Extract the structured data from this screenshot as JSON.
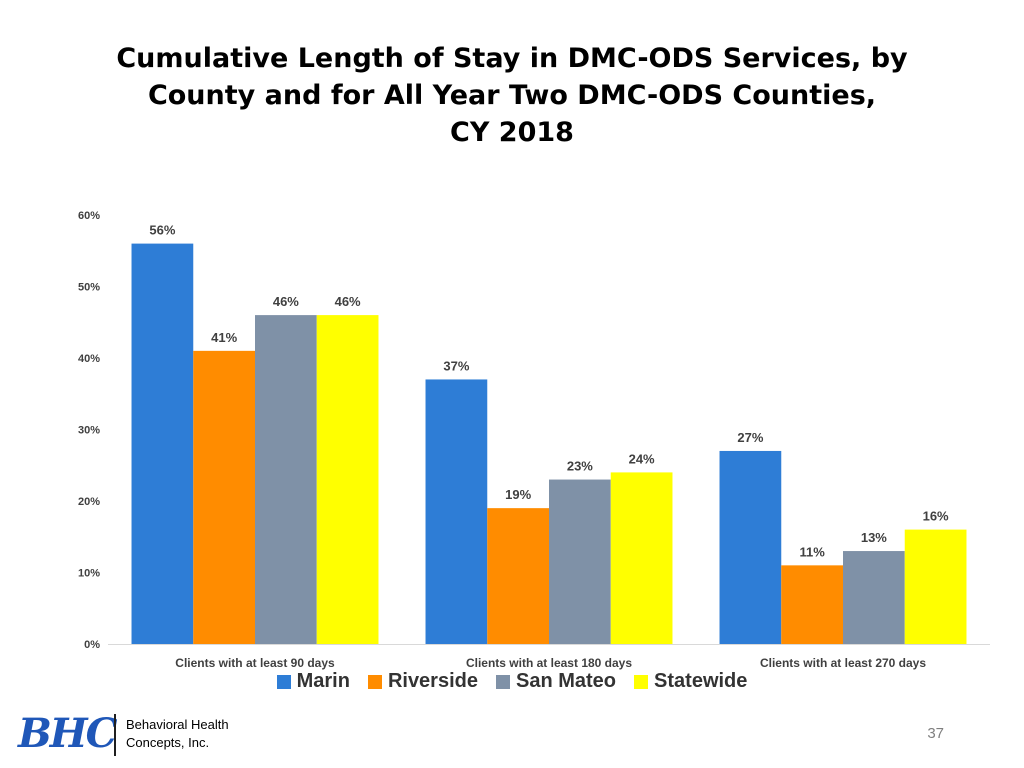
{
  "slide": {
    "title_lines": [
      "Cumulative Length of Stay in DMC-ODS Services, by",
      "County and for All Year Two DMC-ODS Counties,",
      "CY 2018"
    ],
    "page_number": "37",
    "logo": {
      "mark": "BHC",
      "company_lines": [
        "Behavioral Health",
        "Concepts, Inc."
      ]
    }
  },
  "chart_data": {
    "type": "bar",
    "title": "Cumulative Length of Stay in DMC-ODS Services, by County and for All Year Two DMC-ODS Counties, CY 2018",
    "xlabel": "",
    "ylabel": "",
    "ylim": [
      0,
      60
    ],
    "yticks": [
      0,
      10,
      20,
      30,
      40,
      50,
      60
    ],
    "ytick_labels": [
      "0%",
      "10%",
      "20%",
      "30%",
      "40%",
      "50%",
      "60%"
    ],
    "grid": false,
    "legend_position": "bottom",
    "categories": [
      "Clients with at least 90 days",
      "Clients with at least 180 days",
      "Clients with at least 270 days"
    ],
    "series": [
      {
        "name": "Marin",
        "color": "#2e7dd6",
        "values": [
          56,
          37,
          27
        ],
        "labels": [
          "56%",
          "37%",
          "27%"
        ]
      },
      {
        "name": "Riverside",
        "color": "#ff8c00",
        "values": [
          41,
          19,
          11
        ],
        "labels": [
          "41%",
          "19%",
          "11%"
        ]
      },
      {
        "name": "San Mateo",
        "color": "#7f91a7",
        "values": [
          46,
          23,
          13
        ],
        "labels": [
          "46%",
          "23%",
          "13%"
        ]
      },
      {
        "name": "Statewide",
        "color": "#ffff00",
        "values": [
          46,
          24,
          16
        ],
        "labels": [
          "46%",
          "24%",
          "16%"
        ]
      }
    ]
  }
}
